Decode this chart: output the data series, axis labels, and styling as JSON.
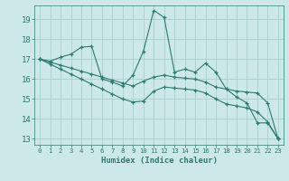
{
  "xlabel": "Humidex (Indice chaleur)",
  "bg_color": "#cce8e8",
  "grid_color": "#aad0d0",
  "line_color": "#2d7a6e",
  "xlim": [
    -0.5,
    23.5
  ],
  "ylim": [
    12.7,
    19.7
  ],
  "yticks": [
    13,
    14,
    15,
    16,
    17,
    18,
    19
  ],
  "xticks": [
    0,
    1,
    2,
    3,
    4,
    5,
    6,
    7,
    8,
    9,
    10,
    11,
    12,
    13,
    14,
    15,
    16,
    17,
    18,
    19,
    20,
    21,
    22,
    23
  ],
  "line1_x": [
    0,
    1,
    2,
    3,
    4,
    5,
    6,
    7,
    8,
    9,
    10,
    11,
    12,
    13,
    14,
    15,
    16,
    17,
    18,
    19,
    20,
    21,
    22,
    23
  ],
  "line1_y": [
    17.0,
    16.9,
    17.1,
    17.25,
    17.6,
    17.65,
    16.0,
    15.85,
    15.65,
    16.2,
    17.4,
    19.45,
    19.1,
    16.35,
    16.5,
    16.35,
    16.8,
    16.35,
    15.5,
    15.1,
    14.8,
    13.8,
    13.8,
    13.0
  ],
  "line2_x": [
    0,
    1,
    2,
    3,
    4,
    5,
    6,
    7,
    8,
    9,
    10,
    11,
    12,
    13,
    14,
    15,
    16,
    17,
    18,
    19,
    20,
    21,
    22,
    23
  ],
  "line2_y": [
    17.0,
    16.85,
    16.7,
    16.55,
    16.4,
    16.25,
    16.1,
    15.95,
    15.8,
    15.65,
    15.9,
    16.1,
    16.2,
    16.1,
    16.05,
    16.0,
    15.85,
    15.6,
    15.5,
    15.4,
    15.35,
    15.3,
    14.8,
    13.0
  ],
  "line3_x": [
    0,
    1,
    2,
    3,
    4,
    5,
    6,
    7,
    8,
    9,
    10,
    11,
    12,
    13,
    14,
    15,
    16,
    17,
    18,
    19,
    20,
    21,
    22,
    23
  ],
  "line3_y": [
    17.0,
    16.75,
    16.5,
    16.25,
    16.0,
    15.75,
    15.5,
    15.25,
    15.0,
    14.85,
    14.9,
    15.4,
    15.6,
    15.55,
    15.5,
    15.45,
    15.3,
    15.0,
    14.75,
    14.65,
    14.55,
    14.35,
    13.85,
    13.0
  ]
}
